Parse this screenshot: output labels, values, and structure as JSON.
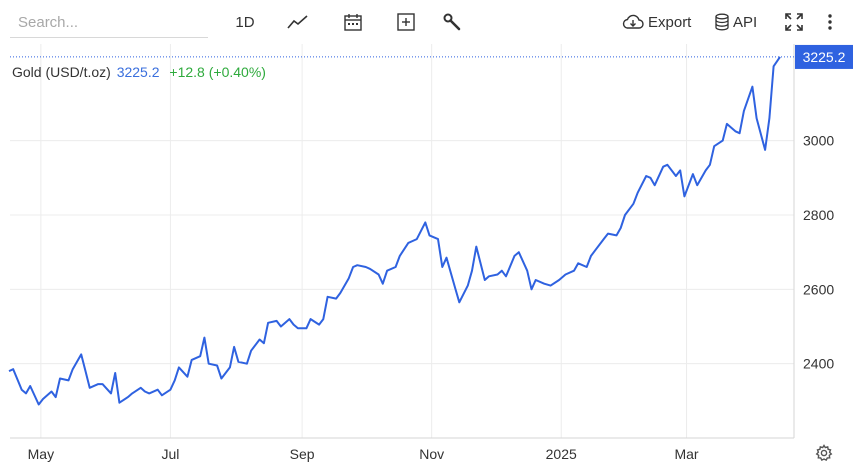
{
  "toolbar": {
    "search_placeholder": "Search...",
    "interval_label": "1D",
    "export_label": "Export",
    "api_label": "API",
    "icons": [
      "line-chart-icon",
      "calendar-icon",
      "plus-box-icon",
      "wrench-icon",
      "cloud-download-icon",
      "database-icon",
      "fullscreen-icon",
      "more-vertical-icon"
    ]
  },
  "legend": {
    "name": "Gold (USD/t.oz)",
    "price": "3225.2",
    "change": "+12.8 (+0.40%)"
  },
  "colors": {
    "line": "#2f62e0",
    "last_price_tag": "#2f62e0",
    "grid": "#ececec",
    "change_positive": "#2eaa3c"
  },
  "chart_data": {
    "type": "line",
    "series": [
      {
        "name": "Gold (USD/t.oz)",
        "x": [
          "2024-04-16",
          "2024-04-18",
          "2024-04-22",
          "2024-04-24",
          "2024-04-26",
          "2024-04-30",
          "2024-05-02",
          "2024-05-06",
          "2024-05-08",
          "2024-05-10",
          "2024-05-14",
          "2024-05-16",
          "2024-05-20",
          "2024-05-22",
          "2024-05-24",
          "2024-05-28",
          "2024-05-30",
          "2024-06-03",
          "2024-06-05",
          "2024-06-07",
          "2024-06-11",
          "2024-06-13",
          "2024-06-17",
          "2024-06-19",
          "2024-06-21",
          "2024-06-25",
          "2024-06-27",
          "2024-07-01",
          "2024-07-03",
          "2024-07-05",
          "2024-07-09",
          "2024-07-11",
          "2024-07-15",
          "2024-07-17",
          "2024-07-19",
          "2024-07-23",
          "2024-07-25",
          "2024-07-29",
          "2024-07-31",
          "2024-08-02",
          "2024-08-06",
          "2024-08-08",
          "2024-08-12",
          "2024-08-14",
          "2024-08-16",
          "2024-08-20",
          "2024-08-22",
          "2024-08-26",
          "2024-08-28",
          "2024-08-30",
          "2024-09-03",
          "2024-09-05",
          "2024-09-09",
          "2024-09-11",
          "2024-09-13",
          "2024-09-17",
          "2024-09-19",
          "2024-09-23",
          "2024-09-25",
          "2024-09-27",
          "2024-10-01",
          "2024-10-03",
          "2024-10-07",
          "2024-10-09",
          "2024-10-11",
          "2024-10-15",
          "2024-10-17",
          "2024-10-21",
          "2024-10-23",
          "2024-10-25",
          "2024-10-29",
          "2024-10-31",
          "2024-11-04",
          "2024-11-06",
          "2024-11-08",
          "2024-11-12",
          "2024-11-14",
          "2024-11-18",
          "2024-11-20",
          "2024-11-22",
          "2024-11-26",
          "2024-11-28",
          "2024-12-02",
          "2024-12-04",
          "2024-12-06",
          "2024-12-10",
          "2024-12-12",
          "2024-12-16",
          "2024-12-18",
          "2024-12-20",
          "2024-12-24",
          "2024-12-27",
          "2024-12-31",
          "2025-01-03",
          "2025-01-07",
          "2025-01-09",
          "2025-01-13",
          "2025-01-15",
          "2025-01-17",
          "2025-01-21",
          "2025-01-23",
          "2025-01-27",
          "2025-01-29",
          "2025-01-31",
          "2025-02-04",
          "2025-02-06",
          "2025-02-10",
          "2025-02-12",
          "2025-02-14",
          "2025-02-18",
          "2025-02-20",
          "2025-02-24",
          "2025-02-26",
          "2025-02-28",
          "2025-03-04",
          "2025-03-06",
          "2025-03-10",
          "2025-03-12",
          "2025-03-14",
          "2025-03-18",
          "2025-03-20",
          "2025-03-24",
          "2025-03-26",
          "2025-03-28",
          "2025-04-01",
          "2025-04-03",
          "2025-04-07",
          "2025-04-09",
          "2025-04-11",
          "2025-04-14"
        ],
        "values": [
          2380,
          2385,
          2330,
          2320,
          2340,
          2290,
          2305,
          2325,
          2310,
          2360,
          2355,
          2385,
          2425,
          2380,
          2335,
          2345,
          2345,
          2320,
          2375,
          2295,
          2310,
          2320,
          2335,
          2325,
          2320,
          2330,
          2315,
          2330,
          2355,
          2390,
          2365,
          2410,
          2420,
          2470,
          2400,
          2395,
          2360,
          2390,
          2445,
          2405,
          2400,
          2435,
          2465,
          2455,
          2510,
          2515,
          2500,
          2520,
          2505,
          2495,
          2495,
          2520,
          2505,
          2520,
          2580,
          2575,
          2590,
          2630,
          2660,
          2665,
          2660,
          2655,
          2640,
          2615,
          2650,
          2660,
          2690,
          2725,
          2730,
          2735,
          2780,
          2745,
          2735,
          2660,
          2685,
          2605,
          2565,
          2610,
          2650,
          2715,
          2625,
          2635,
          2640,
          2650,
          2635,
          2690,
          2700,
          2650,
          2600,
          2625,
          2615,
          2610,
          2625,
          2640,
          2650,
          2670,
          2660,
          2690,
          2705,
          2735,
          2750,
          2745,
          2765,
          2800,
          2830,
          2860,
          2905,
          2900,
          2880,
          2930,
          2935,
          2905,
          2920,
          2850,
          2910,
          2880,
          2920,
          2935,
          2985,
          3000,
          3045,
          3025,
          3020,
          3080,
          3145,
          3060,
          2975,
          3060,
          3200,
          3225.2
        ]
      }
    ],
    "y_ticks": [
      2400,
      2600,
      2800,
      3000
    ],
    "ylim": [
      2200,
      3260
    ],
    "x_tick_labels": [
      {
        "label": "May",
        "x": "2024-05-01"
      },
      {
        "label": "Jul",
        "x": "2024-07-01"
      },
      {
        "label": "Sep",
        "x": "2024-09-01"
      },
      {
        "label": "Nov",
        "x": "2024-11-01"
      },
      {
        "label": "2025",
        "x": "2025-01-01"
      },
      {
        "label": "Mar",
        "x": "2025-03-01"
      }
    ],
    "last_value_label": "3225.2",
    "grid": true,
    "legend_position": "top-left"
  }
}
